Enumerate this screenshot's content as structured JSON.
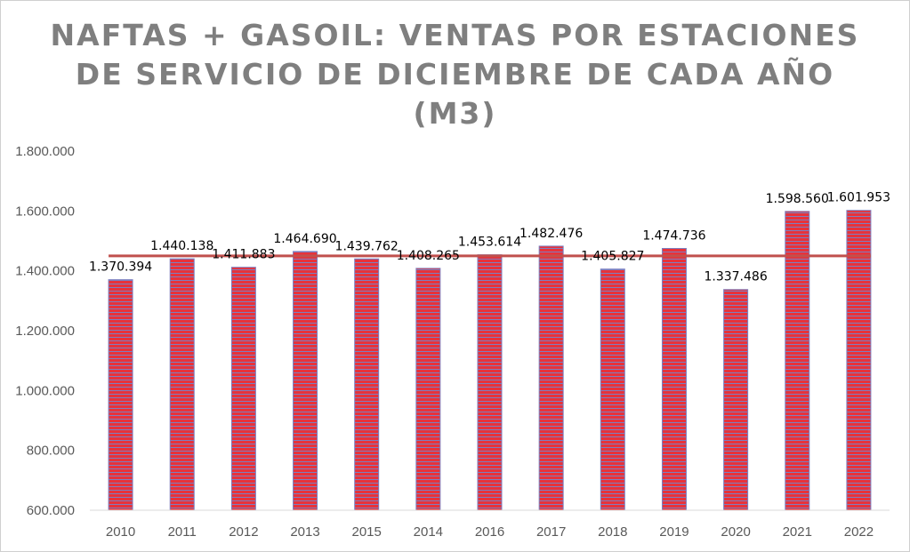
{
  "chart_data": {
    "type": "bar",
    "title_lines": [
      "NAFTAS + GASOIL: VENTAS POR ESTACIONES",
      "DE SERVICIO DE DICIEMBRE DE CADA AÑO",
      "(M3)"
    ],
    "categories": [
      "2010",
      "2011",
      "2012",
      "2013",
      "2015",
      "2014",
      "2016",
      "2017",
      "2018",
      "2019",
      "2020",
      "2021",
      "2022"
    ],
    "values": [
      1370394,
      1440138,
      1411883,
      1464690,
      1439762,
      1408265,
      1453614,
      1482476,
      1405827,
      1474736,
      1337486,
      1598560,
      1601953
    ],
    "value_labels": [
      "1.370.394",
      "1.440.138",
      "1.411.883",
      "1.464.690",
      "1.439.762",
      "1.408.265",
      "1.453.614",
      "1.482.476",
      "1.405.827",
      "1.474.736",
      "1.337.486",
      "1.598.560",
      "1.601.953"
    ],
    "y_ticks": [
      600000,
      800000,
      1000000,
      1200000,
      1400000,
      1600000,
      1800000
    ],
    "y_tick_labels": [
      "600.000",
      "800.000",
      "1.000.000",
      "1.200.000",
      "1.400.000",
      "1.600.000",
      "1.800.000"
    ],
    "ylim": [
      600000,
      1800000
    ],
    "reference_line": {
      "value": 1450000
    },
    "xlabel": "",
    "ylabel": "",
    "grid": false,
    "colors": {
      "bar_red": "#e8323a",
      "bar_blue": "#7d7fbf",
      "reference_line": "#c0504d",
      "axis": "#d9d9d9",
      "title": "#7f7f7f"
    }
  }
}
